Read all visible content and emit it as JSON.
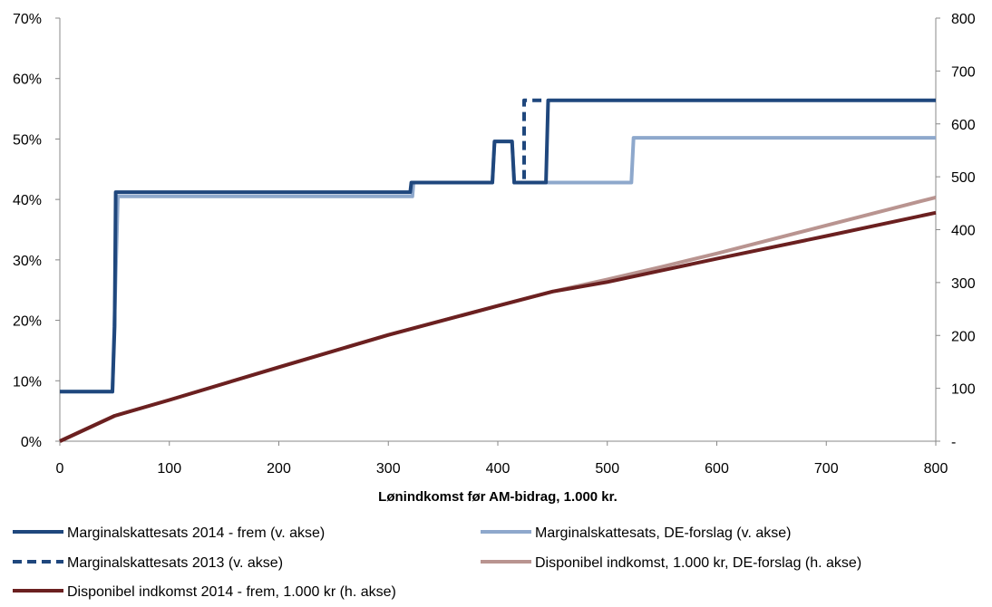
{
  "chart_data": {
    "type": "line",
    "title": "",
    "xlabel": "Lønindkomst før AM-bidrag,  1.000 kr.",
    "ylabel_left": "",
    "ylabel_right": "",
    "xlim": [
      0,
      800
    ],
    "ylim_left": [
      0,
      70
    ],
    "ylim_right": [
      0,
      800
    ],
    "x_ticks": [
      "0",
      "100",
      "200",
      "300",
      "400",
      "500",
      "600",
      "700",
      "800"
    ],
    "y_left_ticks": [
      "0%",
      "10%",
      "20%",
      "30%",
      "40%",
      "50%",
      "60%",
      "70%"
    ],
    "y_right_ticks": [
      "-",
      "100",
      "200",
      "300",
      "400",
      "500",
      "600",
      "700",
      "800"
    ],
    "grid": false,
    "legend_placement": "bottom",
    "series": [
      {
        "name": "Marginalskattesats  2014 - frem (v. akse)",
        "axis": "left",
        "color": "#1F477D",
        "dash": "solid",
        "points": [
          [
            0,
            8.2
          ],
          [
            48,
            8.2
          ],
          [
            50,
            19
          ],
          [
            51,
            41.2
          ],
          [
            320,
            41.2
          ],
          [
            321,
            42.8
          ],
          [
            395,
            42.8
          ],
          [
            397,
            49.6
          ],
          [
            413,
            49.6
          ],
          [
            415,
            42.8
          ],
          [
            444,
            42.8
          ],
          [
            446,
            56.4
          ],
          [
            800,
            56.4
          ]
        ]
      },
      {
        "name": "Marginalskattesats,  DE-forslag  (v. akse)",
        "axis": "left",
        "color": "#8EA8CC",
        "dash": "solid",
        "points": [
          [
            0,
            8.2
          ],
          [
            48,
            8.2
          ],
          [
            53,
            40.5
          ],
          [
            322,
            40.5
          ],
          [
            323,
            42.8
          ],
          [
            395,
            42.8
          ],
          [
            397,
            49.6
          ],
          [
            413,
            49.6
          ],
          [
            415,
            42.8
          ],
          [
            522,
            42.8
          ],
          [
            524,
            50.2
          ],
          [
            800,
            50.2
          ]
        ]
      },
      {
        "name": "Marginalskattesats  2013 (v. akse)",
        "axis": "left",
        "color": "#1F477D",
        "dash": "dashed",
        "points": [
          [
            414,
            42.8
          ],
          [
            424,
            42.8
          ],
          [
            424,
            56.4
          ],
          [
            444,
            56.4
          ]
        ]
      },
      {
        "name": "Disponibel indkomst,  1.000 kr, DE-forslag  (h. akse)",
        "axis": "right",
        "color": "#B99490",
        "dash": "solid",
        "points": [
          [
            0,
            0
          ],
          [
            25,
            24
          ],
          [
            50,
            48
          ],
          [
            100,
            78
          ],
          [
            200,
            140
          ],
          [
            300,
            201
          ],
          [
            400,
            256
          ],
          [
            450,
            283
          ],
          [
            500,
            306
          ],
          [
            550,
            330
          ],
          [
            600,
            355
          ],
          [
            700,
            408
          ],
          [
            800,
            461
          ]
        ]
      },
      {
        "name": "Disponibel indkomst  2014 - frem, 1.000 kr (h. akse)",
        "axis": "right",
        "color": "#6B2020",
        "dash": "solid",
        "points": [
          [
            0,
            0
          ],
          [
            25,
            24
          ],
          [
            50,
            48
          ],
          [
            100,
            78
          ],
          [
            200,
            140
          ],
          [
            300,
            201
          ],
          [
            400,
            256
          ],
          [
            450,
            283
          ],
          [
            500,
            301
          ],
          [
            550,
            323
          ],
          [
            600,
            345
          ],
          [
            700,
            388
          ],
          [
            800,
            432
          ]
        ]
      }
    ]
  },
  "legend": [
    {
      "label": "Marginalskattesats  2014 - frem (v. akse)",
      "color": "#1F477D",
      "dash": "solid"
    },
    {
      "label": "Marginalskattesats,  DE-forslag  (v. akse)",
      "color": "#8EA8CC",
      "dash": "solid"
    },
    {
      "label": "Marginalskattesats  2013 (v. akse)",
      "color": "#1F477D",
      "dash": "dashed"
    },
    {
      "label": "Disponibel indkomst,  1.000 kr, DE-forslag  (h. akse)",
      "color": "#B99490",
      "dash": "solid"
    },
    {
      "label": "Disponibel indkomst  2014 - frem, 1.000 kr (h. akse)",
      "color": "#6B2020",
      "dash": "solid"
    }
  ]
}
